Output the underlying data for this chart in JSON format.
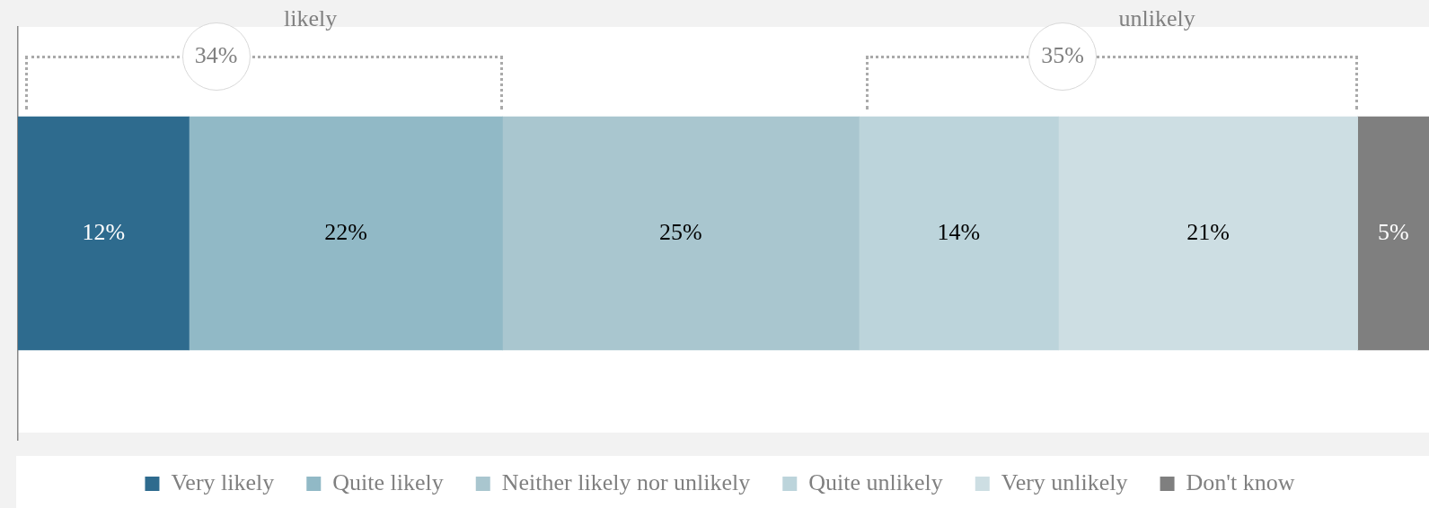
{
  "chart_data": {
    "type": "bar",
    "orientation": "horizontal",
    "stacked": true,
    "categories": [
      null
    ],
    "series": [
      {
        "name": "Very likely",
        "color": "#2e6b8e",
        "values": [
          12
        ],
        "value_labels": [
          "12%"
        ]
      },
      {
        "name": "Quite likely",
        "color": "#91b9c6",
        "values": [
          22
        ],
        "value_labels": [
          "22%"
        ]
      },
      {
        "name": "Neither likely nor unlikely",
        "color": "#a9c6cf",
        "values": [
          25
        ],
        "value_labels": [
          "25%"
        ]
      },
      {
        "name": "Quite unlikely",
        "color": "#bcd4db",
        "values": [
          14
        ],
        "value_labels": [
          "14%"
        ]
      },
      {
        "name": "Very unlikely",
        "color": "#cddee3",
        "values": [
          21
        ],
        "value_labels": [
          "21%"
        ]
      },
      {
        "name": "Don't know",
        "color": "#7f7f7f",
        "values": [
          5
        ],
        "value_labels": [
          "5%"
        ]
      }
    ],
    "legend": "bottom",
    "annotations": [
      "likely",
      "34%",
      "unlikely",
      "35%"
    ]
  }
}
